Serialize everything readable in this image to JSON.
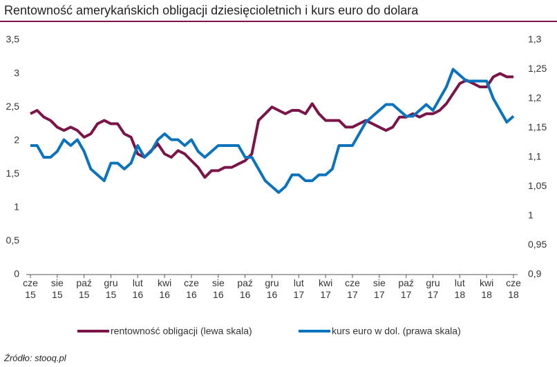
{
  "chart_data": {
    "type": "line",
    "title": "Rentowność amerykańskich obligacji dziesięcioletnich i kurs euro do dolara",
    "source": "Źródło: stooq.pl",
    "x": [
      0,
      0.5,
      1,
      1.5,
      2,
      2.5,
      3,
      3.5,
      4,
      4.5,
      5,
      5.5,
      6,
      6.5,
      7,
      7.5,
      8,
      8.5,
      9,
      9.5,
      10,
      10.5,
      11,
      11.5,
      12,
      12.5,
      13,
      13.5,
      14,
      14.5,
      15,
      15.5,
      16,
      16.5,
      17,
      17.5,
      18,
      18.5,
      19,
      19.5,
      20,
      20.5,
      21,
      21.5,
      22,
      22.5,
      23,
      23.5,
      24,
      24.5,
      25,
      25.5,
      26,
      26.5,
      27,
      27.5,
      28,
      28.5,
      29,
      29.5,
      30,
      30.5,
      31,
      31.5,
      32,
      32.5,
      33,
      33.5,
      34,
      34.5,
      35,
      35.5,
      36
    ],
    "xlim": [
      0,
      36
    ],
    "xticks": [
      {
        "value": 0,
        "label": "cze 15"
      },
      {
        "value": 2,
        "label": "sie 15"
      },
      {
        "value": 4,
        "label": "paź 15"
      },
      {
        "value": 6,
        "label": "gru 15"
      },
      {
        "value": 8,
        "label": "lut 16"
      },
      {
        "value": 10,
        "label": "kwi 16"
      },
      {
        "value": 12,
        "label": "cze 16"
      },
      {
        "value": 14,
        "label": "sie 16"
      },
      {
        "value": 16,
        "label": "paź 16"
      },
      {
        "value": 18,
        "label": "gru 16"
      },
      {
        "value": 20,
        "label": "lut 17"
      },
      {
        "value": 22,
        "label": "kwi 17"
      },
      {
        "value": 24,
        "label": "cze 17"
      },
      {
        "value": 26,
        "label": "sie 17"
      },
      {
        "value": 28,
        "label": "paź 17"
      },
      {
        "value": 30,
        "label": "gru 17"
      },
      {
        "value": 32,
        "label": "lut 18"
      },
      {
        "value": 34,
        "label": "kwi 18"
      },
      {
        "value": 36,
        "label": "cze 18"
      }
    ],
    "ylim": [
      0,
      3.5
    ],
    "yticks": [
      0,
      {
        "value": 0.5,
        "label": "0,5"
      },
      1,
      {
        "value": 1.5,
        "label": "1,5"
      },
      2,
      {
        "value": 2.5,
        "label": "2,5"
      },
      3,
      {
        "value": 3.5,
        "label": "3,5"
      }
    ],
    "y2lim": [
      0.9,
      1.3
    ],
    "y2ticks": [
      {
        "value": 0.9,
        "label": "0,9"
      },
      {
        "value": 0.95,
        "label": "0,95"
      },
      {
        "value": 1,
        "label": "1"
      },
      {
        "value": 1.05,
        "label": "1,05"
      },
      {
        "value": 1.1,
        "label": "1,1"
      },
      {
        "value": 1.15,
        "label": "1,15"
      },
      {
        "value": 1.2,
        "label": "1,2"
      },
      {
        "value": 1.25,
        "label": "1,25"
      },
      {
        "value": 1.3,
        "label": "1,3"
      }
    ],
    "grid": false,
    "series": [
      {
        "name": "rentowność obligacji (lewa skala)",
        "color": "#7b1448",
        "axis": "y",
        "values": [
          2.4,
          2.45,
          2.35,
          2.3,
          2.2,
          2.15,
          2.2,
          2.15,
          2.05,
          2.1,
          2.25,
          2.3,
          2.25,
          2.25,
          2.1,
          2.05,
          1.8,
          1.75,
          1.85,
          1.95,
          1.8,
          1.75,
          1.85,
          1.8,
          1.7,
          1.6,
          1.45,
          1.55,
          1.55,
          1.6,
          1.6,
          1.65,
          1.7,
          1.8,
          2.3,
          2.4,
          2.5,
          2.45,
          2.4,
          2.45,
          2.45,
          2.4,
          2.55,
          2.4,
          2.3,
          2.3,
          2.3,
          2.2,
          2.2,
          2.25,
          2.3,
          2.25,
          2.2,
          2.15,
          2.2,
          2.35,
          2.35,
          2.4,
          2.35,
          2.4,
          2.4,
          2.45,
          2.55,
          2.7,
          2.85,
          2.9,
          2.85,
          2.8,
          2.8,
          2.95,
          3.0,
          2.95,
          2.95
        ]
      },
      {
        "name": "kurs euro w dol. (prawa skala)",
        "color": "#0a73be",
        "axis": "y2",
        "values": [
          1.12,
          1.12,
          1.1,
          1.1,
          1.11,
          1.13,
          1.12,
          1.13,
          1.11,
          1.08,
          1.07,
          1.06,
          1.09,
          1.09,
          1.08,
          1.09,
          1.12,
          1.1,
          1.11,
          1.13,
          1.14,
          1.13,
          1.13,
          1.12,
          1.13,
          1.11,
          1.1,
          1.11,
          1.12,
          1.12,
          1.12,
          1.12,
          1.1,
          1.1,
          1.08,
          1.06,
          1.05,
          1.04,
          1.05,
          1.07,
          1.07,
          1.06,
          1.06,
          1.07,
          1.07,
          1.08,
          1.12,
          1.12,
          1.12,
          1.14,
          1.16,
          1.17,
          1.18,
          1.19,
          1.19,
          1.18,
          1.17,
          1.17,
          1.18,
          1.19,
          1.18,
          1.2,
          1.22,
          1.25,
          1.24,
          1.23,
          1.23,
          1.23,
          1.23,
          1.2,
          1.18,
          1.16,
          1.17
        ]
      }
    ]
  }
}
